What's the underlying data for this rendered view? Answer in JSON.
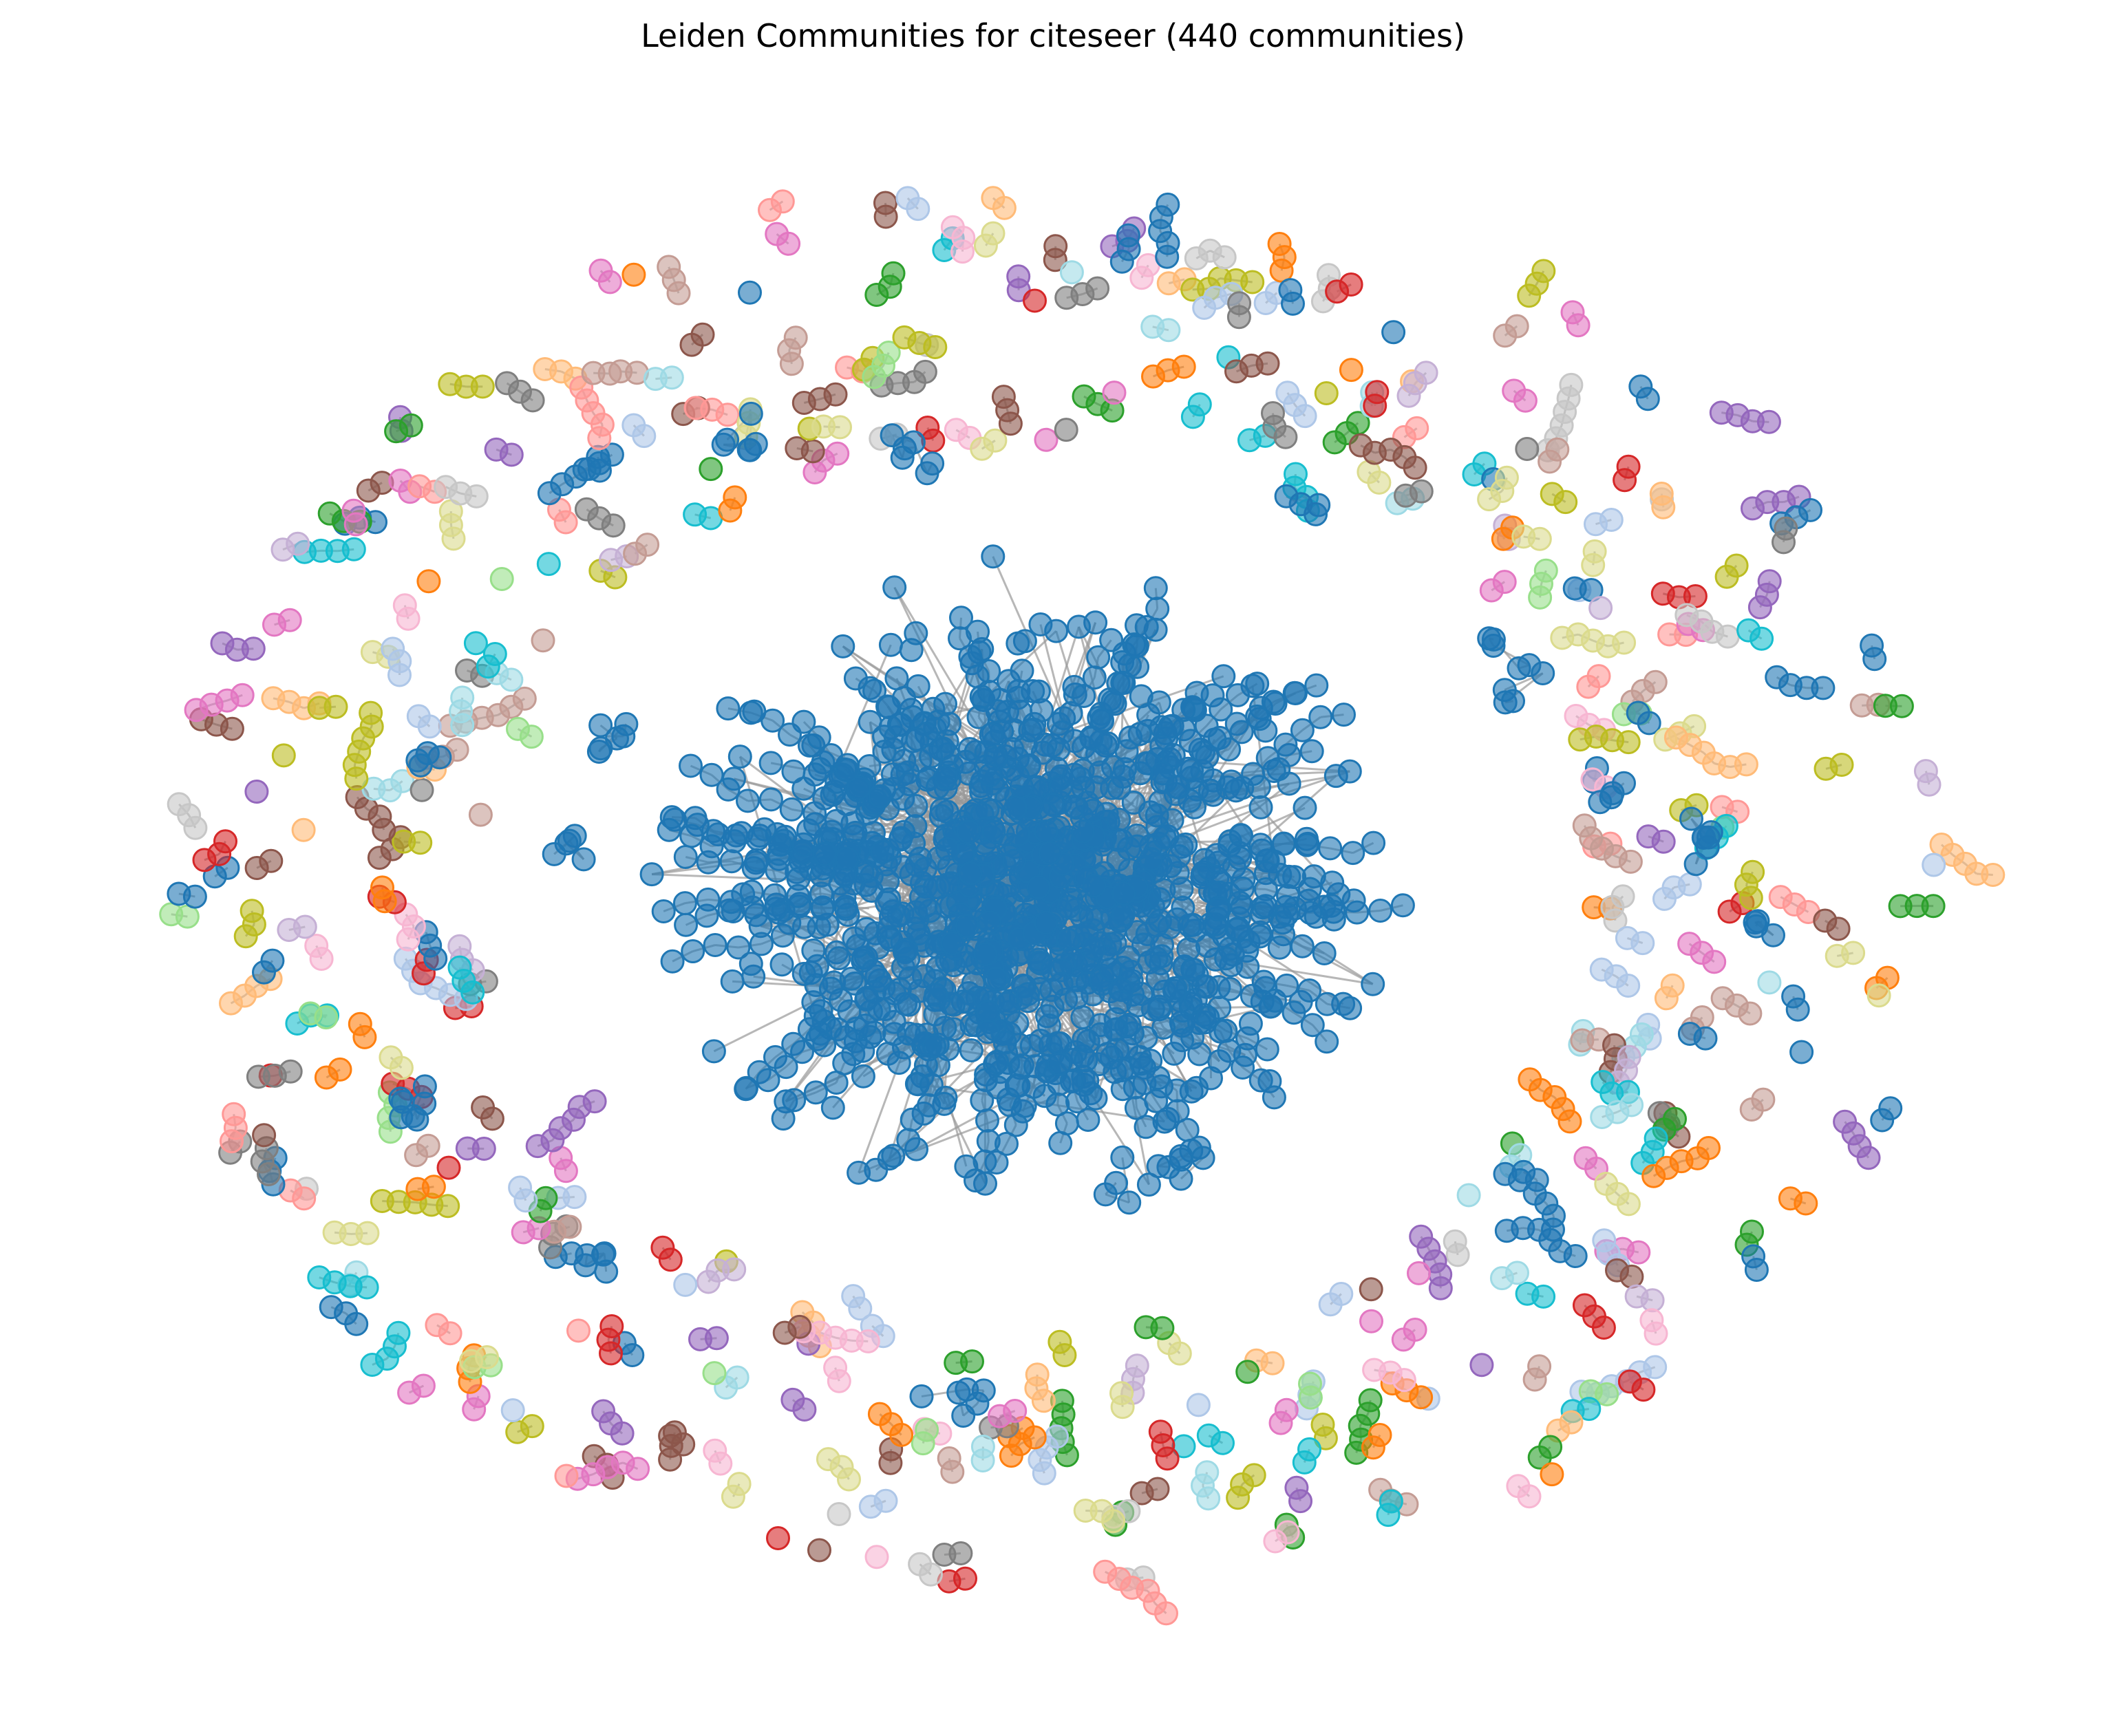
{
  "title": "Leiden Communities for citeseer (440 communities)",
  "graph": {
    "type": "network",
    "layout": "force-directed",
    "axes": "off",
    "node_alpha": 0.6,
    "edge_color": "#999999",
    "main_community_color": "#1f77b4",
    "palette": [
      "#1f77b4",
      "#aec7e8",
      "#ff7f0e",
      "#ffbb78",
      "#2ca02c",
      "#98df8a",
      "#d62728",
      "#ff9896",
      "#9467bd",
      "#c5b0d5",
      "#8c564b",
      "#c49c94",
      "#e377c2",
      "#f7b6d2",
      "#7f7f7f",
      "#c7c7c7",
      "#bcbd22",
      "#dbdb8d",
      "#17becf",
      "#9edae5"
    ]
  }
}
